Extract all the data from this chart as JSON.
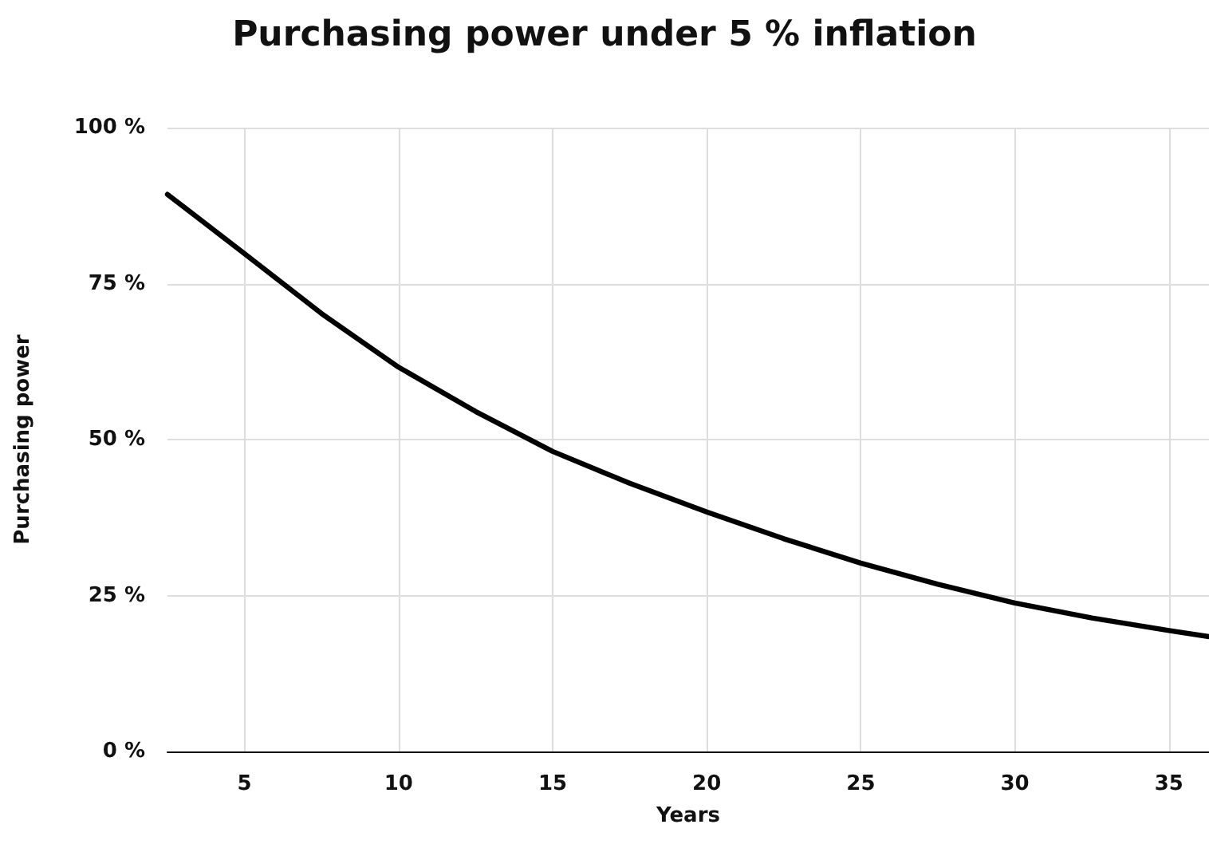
{
  "chart_data": {
    "type": "line",
    "title": "Purchasing power under 5 % inflation",
    "xlabel": "Years",
    "ylabel": "Purchasing power",
    "x": [
      2.5,
      5,
      7.5,
      10,
      12.5,
      15,
      17.5,
      20,
      22.5,
      25,
      27.5,
      30,
      32.5,
      35,
      36.3
    ],
    "series": [
      {
        "color": "#000000",
        "values": [
          89.3,
          79.8,
          70.2,
          61.6,
          54.5,
          48.1,
          43,
          38.4,
          34.1,
          30.2,
          26.8,
          23.8,
          21.4,
          19.4,
          18.4
        ]
      }
    ],
    "xlim": [
      2.5,
      36.3
    ],
    "xticks": [
      5,
      10,
      15,
      20,
      25,
      30,
      35
    ],
    "ylim": [
      0,
      100
    ],
    "yticks": [
      {
        "value": 0,
        "label": "0 %"
      },
      {
        "value": 25,
        "label": "25 %"
      },
      {
        "value": 50,
        "label": "50 %"
      },
      {
        "value": 75,
        "label": "75 %"
      },
      {
        "value": 100,
        "label": "100 %"
      }
    ],
    "grid": true,
    "marker": "none",
    "line_style": "solid"
  }
}
